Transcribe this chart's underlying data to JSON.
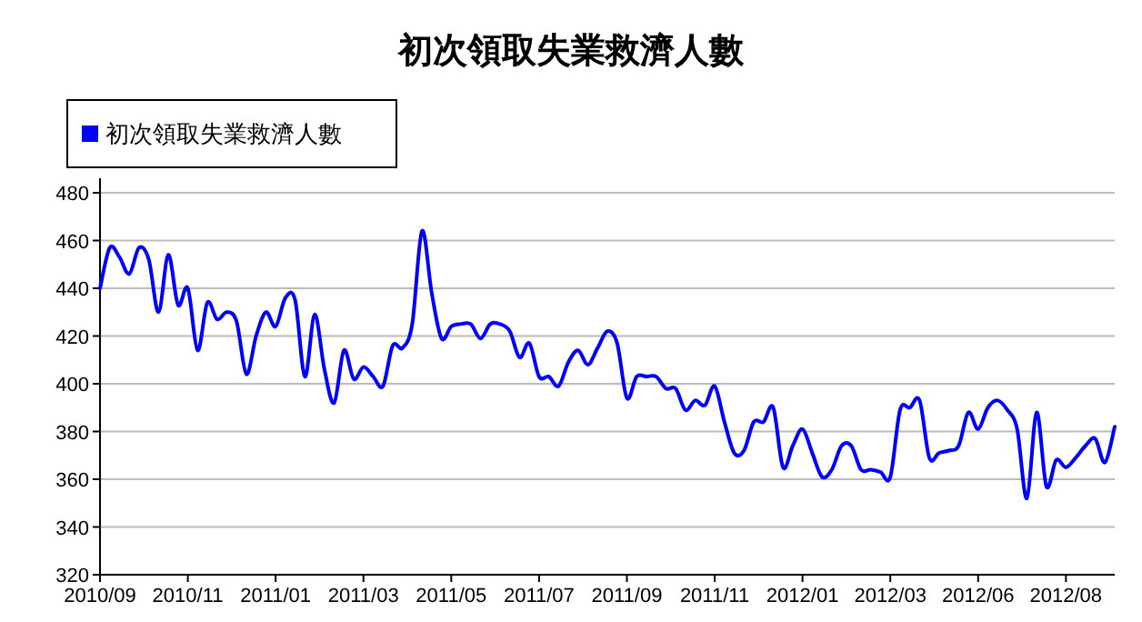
{
  "chart_data": {
    "type": "line",
    "title": "初次領取失業救濟人數",
    "categories": [
      "2010/09",
      null,
      null,
      null,
      null,
      null,
      null,
      null,
      null,
      "2010/11",
      null,
      null,
      null,
      null,
      null,
      null,
      null,
      null,
      "2011/01",
      null,
      null,
      null,
      null,
      null,
      null,
      null,
      null,
      "2011/03",
      null,
      null,
      null,
      null,
      null,
      null,
      null,
      null,
      "2011/05",
      null,
      null,
      null,
      null,
      null,
      null,
      null,
      null,
      "2011/07",
      null,
      null,
      null,
      null,
      null,
      null,
      null,
      null,
      "2011/09",
      null,
      null,
      null,
      null,
      null,
      null,
      null,
      null,
      "2011/11",
      null,
      null,
      null,
      null,
      null,
      null,
      null,
      null,
      "2012/01",
      null,
      null,
      null,
      null,
      null,
      null,
      null,
      null,
      "2012/03",
      null,
      null,
      null,
      null,
      null,
      null,
      null,
      null,
      "2012/06",
      null,
      null,
      null,
      null,
      null,
      null,
      null,
      null,
      "2012/08",
      null,
      null,
      null,
      null,
      null
    ],
    "series": [
      {
        "name": "初次領取失業救濟人數",
        "color": "#0000ff",
        "values": [
          440,
          457,
          453,
          446,
          457,
          452,
          430,
          454,
          433,
          440,
          414,
          434,
          427,
          430,
          426,
          404,
          420,
          430,
          424,
          436,
          435,
          403,
          429,
          406,
          392,
          414,
          402,
          407,
          403,
          399,
          416,
          415,
          425,
          464,
          438,
          419,
          424,
          425,
          425,
          419,
          425,
          425,
          422,
          411,
          417,
          403,
          403,
          399,
          409,
          414,
          408,
          415,
          422,
          417,
          394,
          403,
          403,
          403,
          398,
          398,
          389,
          393,
          391,
          399,
          384,
          371,
          372,
          384,
          384,
          390,
          365,
          374,
          381,
          371,
          361,
          364,
          374,
          374,
          364,
          364,
          363,
          361,
          389,
          390,
          393,
          369,
          371,
          372,
          374,
          388,
          381,
          390,
          393,
          389,
          381,
          352,
          388,
          357,
          368,
          365,
          369,
          374,
          377,
          367,
          382
        ]
      }
    ],
    "ylim": [
      320,
      480
    ],
    "yticks": [
      320,
      340,
      360,
      380,
      400,
      420,
      440,
      460,
      480
    ],
    "grid": "y",
    "legend": "top left"
  }
}
